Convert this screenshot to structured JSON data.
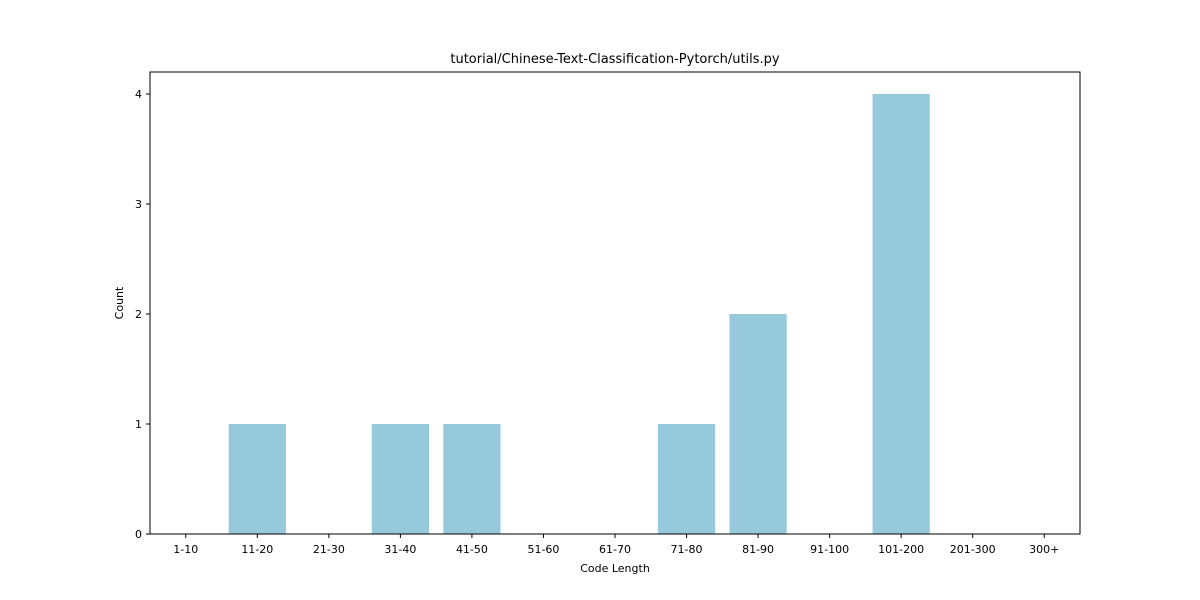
{
  "chart_data": {
    "type": "bar",
    "title": "tutorial/Chinese-Text-Classification-Pytorch/utils.py",
    "xlabel": "Code Length",
    "ylabel": "Count",
    "categories": [
      "1-10",
      "11-20",
      "21-30",
      "31-40",
      "41-50",
      "51-60",
      "61-70",
      "71-80",
      "81-90",
      "91-100",
      "101-200",
      "201-300",
      "300+"
    ],
    "values": [
      0,
      1,
      0,
      1,
      1,
      0,
      0,
      1,
      2,
      0,
      4,
      0,
      0
    ],
    "ylim": [
      0,
      4.2
    ],
    "yticks": [
      0,
      1,
      2,
      3,
      4
    ],
    "bar_color": "#96c9dc",
    "grid": false,
    "legend": "none"
  }
}
